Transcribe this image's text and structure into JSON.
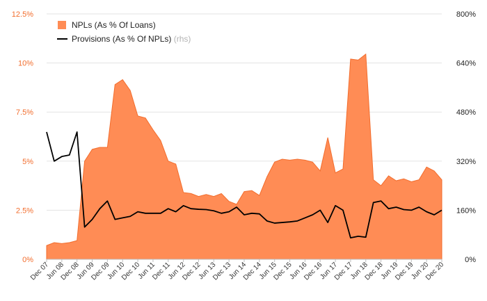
{
  "chart_data": {
    "type": "area",
    "left_axis": {
      "min": 0,
      "max": 12.5,
      "ticks": [
        0,
        2.5,
        5,
        7.5,
        10,
        12.5
      ],
      "tick_labels": [
        "0%",
        "2.5%",
        "5%",
        "7.5%",
        "10%",
        "12.5%"
      ],
      "color": "#f26d2d"
    },
    "right_axis": {
      "min": 0,
      "max": 800,
      "ticks": [
        0,
        160,
        320,
        480,
        640,
        800
      ],
      "tick_labels": [
        "0%",
        "160%",
        "320%",
        "480%",
        "640%",
        "800%"
      ],
      "color": "#222222"
    },
    "x_labels": [
      "Dec 07",
      "Jun 08",
      "Dec 08",
      "Jun 09",
      "Dec 09",
      "Jun 10",
      "Dec 10",
      "Jun 11",
      "Dec 11",
      "Jun 12",
      "Dec 12",
      "Jun 13",
      "Dec 13",
      "Jun 14",
      "Dec 14",
      "Jun 15",
      "Dec 15",
      "Jun 16",
      "Dec 16",
      "Jun 17",
      "Dec 17",
      "Jun 18",
      "Dec 18",
      "Jun 19",
      "Dec 19",
      "Jun 20",
      "Dec 20"
    ],
    "legend": [
      {
        "key": "npl",
        "label": "NPLs (As % Of Loans)",
        "note": "",
        "color": "#ff8c55",
        "marker": "square"
      },
      {
        "key": "prov",
        "label": "Provisions (As % Of NPLs)",
        "note": "(rhs)",
        "color": "#000000",
        "marker": "line"
      }
    ],
    "series": [
      {
        "name": "NPLs (As % Of Loans)",
        "axis": "left",
        "style": "area",
        "color": "#ff8c55",
        "values": [
          0.7,
          0.85,
          0.8,
          0.85,
          0.95,
          5.0,
          5.6,
          5.7,
          5.7,
          8.9,
          9.15,
          8.6,
          7.3,
          7.2,
          6.6,
          6.05,
          5.0,
          4.85,
          3.4,
          3.35,
          3.2,
          3.3,
          3.2,
          3.35,
          2.95,
          2.8,
          3.45,
          3.5,
          3.25,
          4.2,
          4.95,
          5.1,
          5.05,
          5.1,
          5.05,
          4.95,
          4.5,
          6.2,
          4.4,
          4.6,
          10.2,
          10.15,
          10.45,
          4.05,
          3.75,
          4.25,
          4.0,
          4.1,
          3.95,
          4.05,
          4.7,
          4.5,
          4.05
        ]
      },
      {
        "name": "Provisions (As % Of NPLs)",
        "axis": "right",
        "style": "line",
        "color": "#000000",
        "values": [
          415,
          320,
          335,
          340,
          415,
          105,
          130,
          165,
          190,
          130,
          135,
          140,
          155,
          150,
          150,
          150,
          165,
          155,
          175,
          165,
          163,
          162,
          158,
          150,
          155,
          170,
          145,
          150,
          148,
          125,
          118,
          120,
          122,
          125,
          135,
          145,
          160,
          120,
          175,
          160,
          70,
          75,
          72,
          185,
          190,
          165,
          170,
          162,
          160,
          170,
          155,
          145,
          160
        ]
      }
    ]
  }
}
